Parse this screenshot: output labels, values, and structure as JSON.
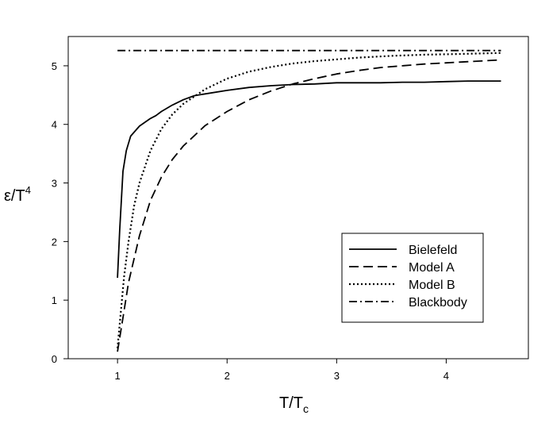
{
  "chart_data": {
    "type": "line",
    "title": "",
    "xlabel": {
      "main": "T/T",
      "sub": "c"
    },
    "ylabel": {
      "main": "ε/T",
      "sup": "4"
    },
    "xlim": [
      0.55,
      4.75
    ],
    "ylim": [
      0,
      5.5
    ],
    "xticks": [
      1,
      2,
      3,
      4
    ],
    "yticks": [
      0,
      1,
      2,
      3,
      4,
      5
    ],
    "grid": false,
    "legend_position": "bottom-right",
    "series": [
      {
        "name": "Bielefeld",
        "style": "solid",
        "x": [
          1.0,
          1.02,
          1.05,
          1.08,
          1.12,
          1.2,
          1.3,
          1.35,
          1.4,
          1.5,
          1.6,
          1.7,
          1.8,
          2.0,
          2.2,
          2.4,
          2.6,
          2.8,
          3.0,
          3.2,
          3.4,
          3.6,
          3.8,
          4.0,
          4.2,
          4.4,
          4.5
        ],
        "y": [
          1.38,
          2.2,
          3.2,
          3.55,
          3.8,
          3.97,
          4.1,
          4.15,
          4.22,
          4.33,
          4.42,
          4.49,
          4.52,
          4.58,
          4.63,
          4.66,
          4.68,
          4.69,
          4.71,
          4.71,
          4.71,
          4.72,
          4.72,
          4.73,
          4.74,
          4.74,
          4.74
        ]
      },
      {
        "name": "Model A",
        "style": "dashed",
        "x": [
          1.0,
          1.05,
          1.1,
          1.2,
          1.3,
          1.4,
          1.5,
          1.6,
          1.8,
          2.0,
          2.2,
          2.4,
          2.6,
          2.8,
          3.0,
          3.2,
          3.4,
          3.6,
          3.8,
          4.0,
          4.2,
          4.5
        ],
        "y": [
          0.12,
          0.7,
          1.3,
          2.1,
          2.7,
          3.1,
          3.4,
          3.63,
          3.98,
          4.22,
          4.42,
          4.57,
          4.69,
          4.78,
          4.86,
          4.92,
          4.97,
          5.0,
          5.03,
          5.05,
          5.07,
          5.1
        ]
      },
      {
        "name": "Model B",
        "style": "dotted",
        "x": [
          1.0,
          1.03,
          1.06,
          1.1,
          1.15,
          1.2,
          1.3,
          1.4,
          1.5,
          1.6,
          1.8,
          2.0,
          2.2,
          2.4,
          2.6,
          2.8,
          3.0,
          3.2,
          3.5,
          3.8,
          4.1,
          4.5
        ],
        "y": [
          0.18,
          0.8,
          1.4,
          2.0,
          2.6,
          3.0,
          3.55,
          3.92,
          4.17,
          4.35,
          4.6,
          4.78,
          4.9,
          4.98,
          5.04,
          5.08,
          5.11,
          5.14,
          5.17,
          5.19,
          5.2,
          5.22
        ]
      },
      {
        "name": "Blackbody",
        "style": "dashdot",
        "x": [
          1.0,
          4.5
        ],
        "y": [
          5.26,
          5.26
        ]
      }
    ]
  }
}
